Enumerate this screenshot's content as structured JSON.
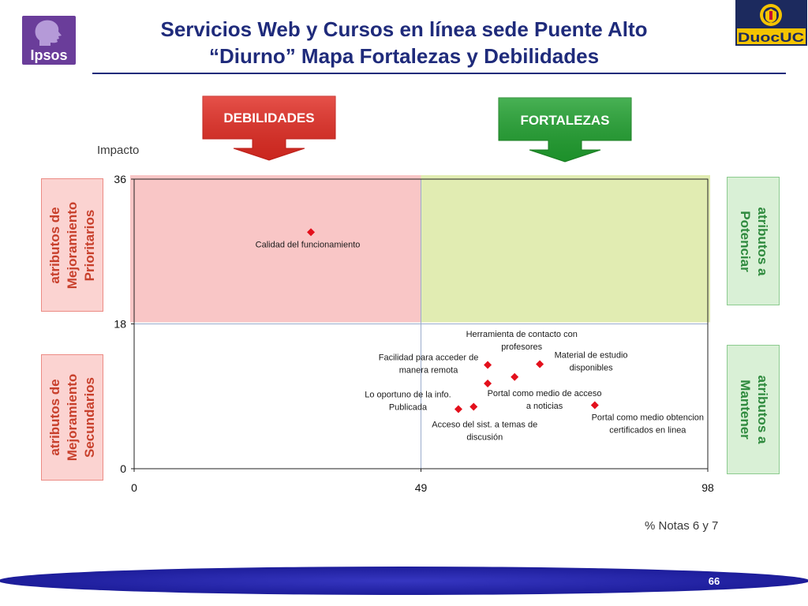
{
  "slide": {
    "title_line1": "Servicios Web y Cursos en línea sede Puente Alto",
    "title_line2": "“Diurno” Mapa Fortalezas y Debilidades",
    "page_number": "66"
  },
  "logos": {
    "ipsos": "Ipsos",
    "duoc": "DuocUC"
  },
  "callouts": {
    "debilidades": "DEBILIDADES",
    "fortalezas": "FORTALEZAS"
  },
  "side_labels": {
    "left_top": [
      "atributos de",
      "Mejoramiento",
      "Prioritarios"
    ],
    "left_bottom": [
      "atributos de",
      "Mejoramiento",
      "Secundarios"
    ],
    "right_top": [
      "atributos a",
      "Potenciar"
    ],
    "right_bottom": [
      "atributos a",
      "Mantener"
    ]
  },
  "colors": {
    "title": "#1f2b7b",
    "debilidades": "#e12b22",
    "fortalezas": "#20a02f",
    "marker": "#e3101c",
    "quadrant_debilidades": "#f9c6c6",
    "quadrant_fortalezas": "#e1ecb2",
    "mejoramiento_text": "#c8402c",
    "potenciar_text": "#2f8a3e",
    "footer": "#1d1d9a"
  },
  "chart_data": {
    "type": "scatter",
    "xlabel": "% Notas 6 y 7",
    "ylabel": "Impacto",
    "xlim": [
      0,
      98
    ],
    "ylim": [
      0,
      36
    ],
    "xticks": [
      0,
      49,
      98
    ],
    "yticks": [
      0,
      18,
      36
    ],
    "thresholds": {
      "x": 49,
      "y": 18
    },
    "grid": false,
    "points": [
      {
        "label_lines": [
          "Calidad del funcionamiento"
        ],
        "x": 30.2,
        "y": 29.4
      },
      {
        "label_lines": [
          "Facilidad para acceder de",
          "manera remota"
        ],
        "x": 60.4,
        "y": 12.9
      },
      {
        "label_lines": [
          "Material de estudio",
          "disponibles"
        ],
        "x": 69.3,
        "y": 13.0
      },
      {
        "label_lines": [
          "Herramienta de contacto con",
          "profesores"
        ],
        "x": 65.0,
        "y": 11.4
      },
      {
        "label_lines": [
          "Portal como medio de acceso",
          "a noticias"
        ],
        "x": 60.4,
        "y": 10.6
      },
      {
        "label_lines": [
          "Acceso del sist. a temas de",
          "discusión"
        ],
        "x": 58.0,
        "y": 7.7
      },
      {
        "label_lines": [
          "Lo oportuno de la info.",
          "Publicada"
        ],
        "x": 55.4,
        "y": 7.4
      },
      {
        "label_lines": [
          "Portal como medio obtencion",
          "certificados en linea"
        ],
        "x": 78.7,
        "y": 7.9
      }
    ]
  }
}
